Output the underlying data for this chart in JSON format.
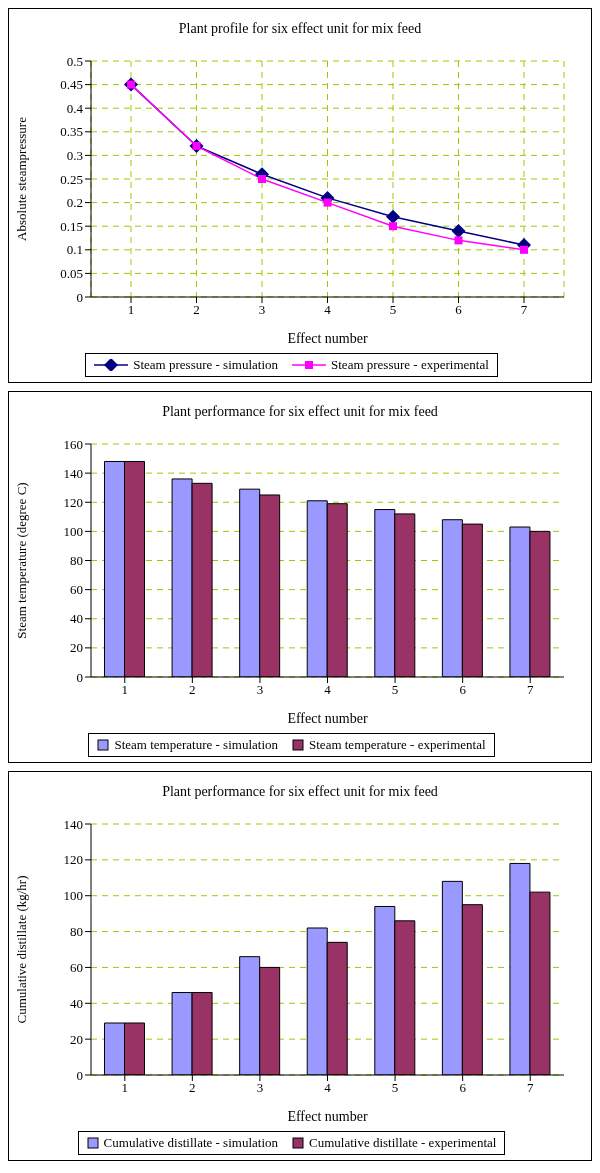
{
  "chart_data": [
    {
      "type": "line",
      "title": "Plant profile for six effect unit for mix feed",
      "xlabel": "Effect number",
      "ylabel": "Absolute steampressure",
      "categories": [
        "1",
        "2",
        "3",
        "4",
        "5",
        "6",
        "7"
      ],
      "series": [
        {
          "name": "Steam pressure - simulation",
          "color": "#000080",
          "marker": "diamond",
          "values": [
            0.45,
            0.32,
            0.26,
            0.21,
            0.17,
            0.14,
            0.11
          ]
        },
        {
          "name": "Steam pressure - experimental",
          "color": "#ff00ff",
          "marker": "square",
          "values": [
            0.45,
            0.32,
            0.25,
            0.2,
            0.15,
            0.12,
            0.1
          ]
        }
      ],
      "ylim": [
        0,
        0.5
      ],
      "yticks": [
        0,
        0.05,
        0.1,
        0.15,
        0.2,
        0.25,
        0.3,
        0.35,
        0.4,
        0.45,
        0.5
      ],
      "grid": true,
      "legend": "bottom",
      "line_style": "solid"
    },
    {
      "type": "bar",
      "title": "Plant performance for six effect unit for mix feed",
      "xlabel": "Effect number",
      "ylabel": "Steam temperature (degree C)",
      "categories": [
        "1",
        "2",
        "3",
        "4",
        "5",
        "6",
        "7"
      ],
      "series": [
        {
          "name": "Steam temperature - simulation",
          "color": "#9999ff",
          "values": [
            148,
            136,
            129,
            121,
            115,
            108,
            103
          ]
        },
        {
          "name": "Steam temperature - experimental",
          "color": "#993366",
          "values": [
            148,
            133,
            125,
            119,
            112,
            105,
            100
          ]
        }
      ],
      "ylim": [
        0,
        160
      ],
      "yticks": [
        0,
        20,
        40,
        60,
        80,
        100,
        120,
        140,
        160
      ],
      "grid": "y",
      "legend": "bottom"
    },
    {
      "type": "bar",
      "title": "Plant performance for six effect unit for mix feed",
      "xlabel": "Effect number",
      "ylabel": "Cumulative distillate (kg/hr)",
      "categories": [
        "1",
        "2",
        "3",
        "4",
        "5",
        "6",
        "7"
      ],
      "series": [
        {
          "name": "Cumulative distillate - simulation",
          "color": "#9999ff",
          "values": [
            29,
            46,
            66,
            82,
            94,
            108,
            118
          ]
        },
        {
          "name": "Cumulative distillate - experimental",
          "color": "#993366",
          "values": [
            29,
            46,
            60,
            74,
            86,
            95,
            102
          ]
        }
      ],
      "ylim": [
        0,
        140
      ],
      "yticks": [
        0,
        20,
        40,
        60,
        80,
        100,
        120,
        140
      ],
      "grid": "y",
      "legend": "bottom"
    }
  ]
}
